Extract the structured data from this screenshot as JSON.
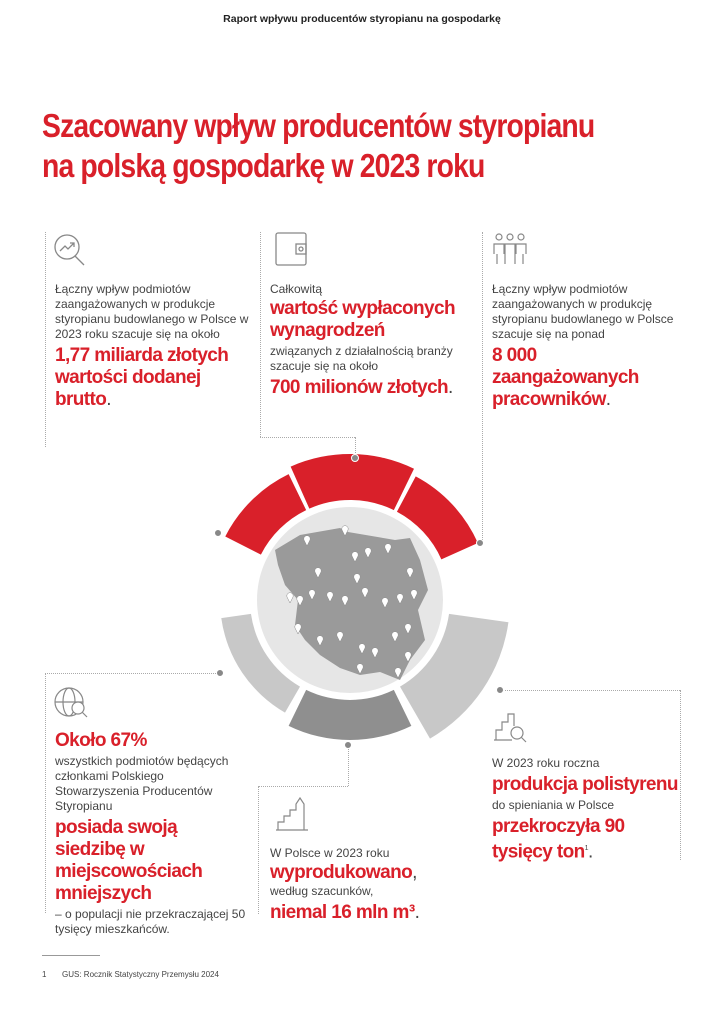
{
  "header": {
    "running_title": "Raport wpływu producentów styropianu na gospodarkę"
  },
  "title": {
    "line1": "Szacowany wpływ producentów styropianu",
    "line2": "na polską gospodarkę w 2023 roku"
  },
  "blocks": {
    "value_added": {
      "icon": "magnifier-trend-icon",
      "text": "Łączny wpływ podmiotów zaangażowanych w produkcje styropianu budowlanego w Polsce w 2023 roku szacuje się na około",
      "highlight": "1,77 miliarda złotych wartości dodanej brutto",
      "end": "."
    },
    "wages": {
      "icon": "wallet-icon",
      "pre": "Całkowitą",
      "highlight": "wartość wypłaconych wynagrodzeń",
      "text": "związanych z działalnością branży szacuje się na około",
      "value": "700 milionów złotych",
      "end": "."
    },
    "employees": {
      "icon": "people-icon",
      "text": "Łączny wpływ podmiotów zaangażowanych w produkcję styropianu budowlanego w Polsce szacuje się na ponad",
      "highlight": "8 000 zaangażowanych pracowników",
      "end": "."
    },
    "locations": {
      "icon": "globe-search-icon",
      "highlight": "Około 67%",
      "text": "wszystkich podmiotów będących członkami Polskiego Stowarzyszenia Producentów Styropianu",
      "highlight2": "posiada swoją siedzibę w miejscowościach mniejszych",
      "text2": "– o populacji nie przekraczającej 50 tysięcy mieszkańców."
    },
    "production": {
      "icon": "growth-chart-icon",
      "text": "W Polsce w 2023 roku",
      "highlight": "wyprodukowano",
      "end1": ",",
      "text2": "według szacunków,",
      "value": "niemal 16 mln m³",
      "end": "."
    },
    "polystyrene": {
      "icon": "chart-search-icon",
      "text": "W 2023 roku roczna",
      "highlight": "produkcja polistyrenu",
      "text2": "do spieniania w Polsce",
      "value": "przekroczyła 90 tysięcy ton",
      "sup": "1",
      "end": "."
    }
  },
  "colors": {
    "red": "#d9202a",
    "light_gray": "#c8c8c8",
    "dark_gray": "#8f8f8f",
    "map_gray": "#9a9a9a"
  },
  "footnote": {
    "number": "1",
    "text": "GUS: Rocznik Statystyczny Przemysłu 2024"
  }
}
